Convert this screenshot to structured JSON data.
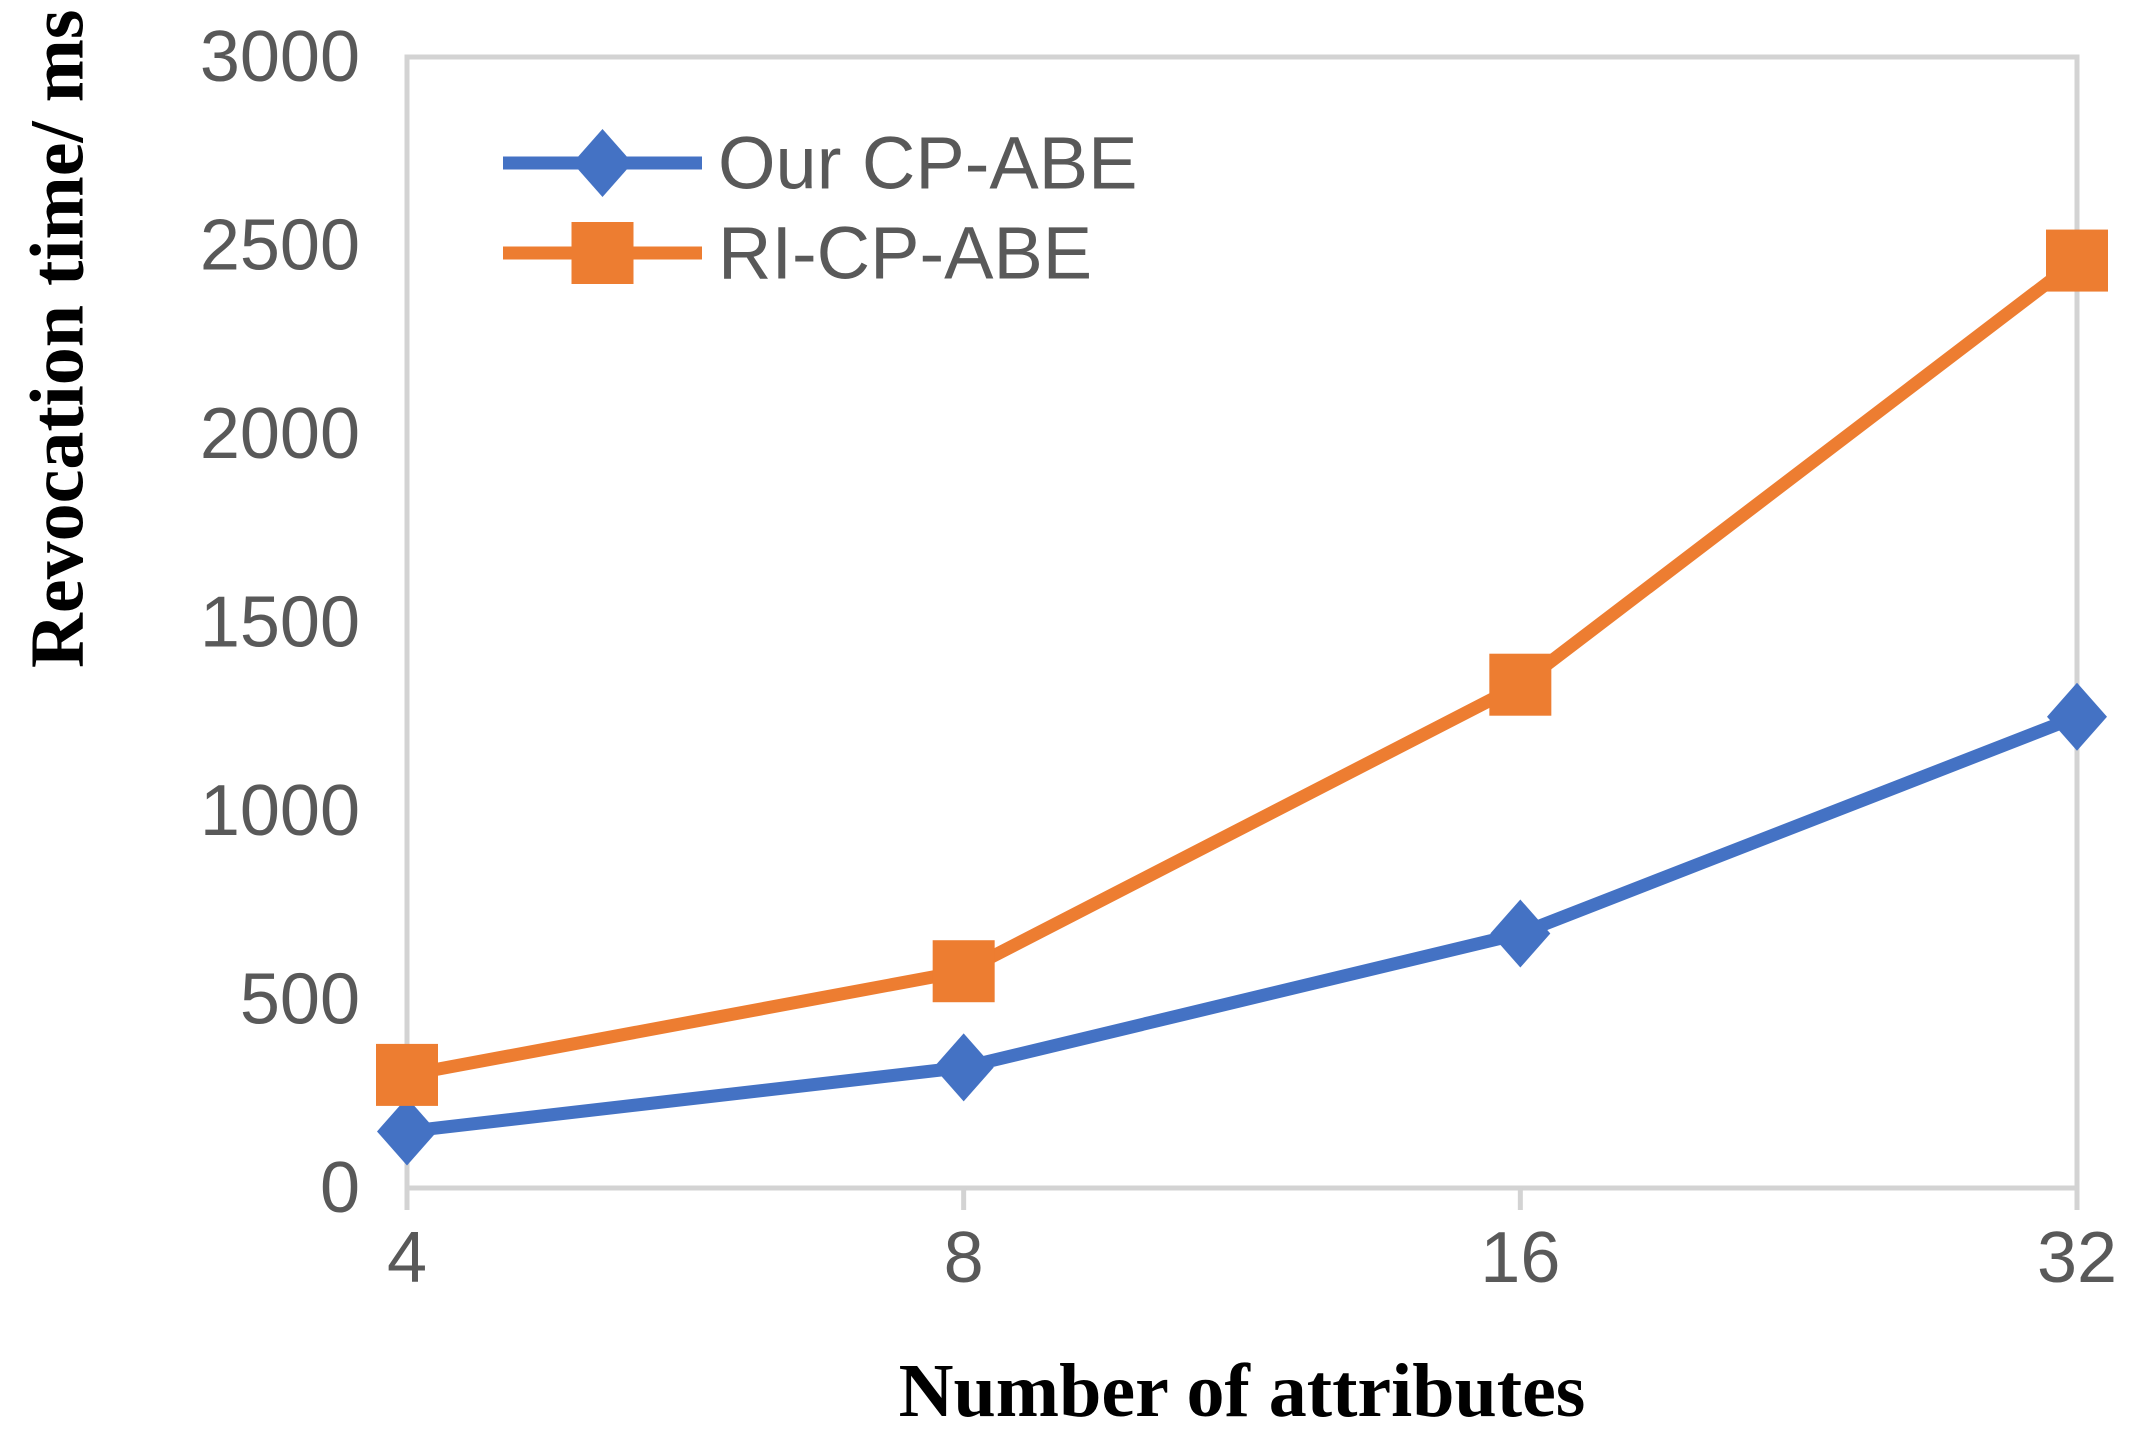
{
  "chart_data": {
    "type": "line",
    "title": "",
    "xlabel": "Number of attributes",
    "ylabel": "Revocation time/ ms",
    "categories": [
      "4",
      "8",
      "16",
      "32"
    ],
    "y_ticks": [
      0,
      500,
      1000,
      1500,
      2000,
      2500,
      3000
    ],
    "ylim": [
      0,
      3000
    ],
    "grid": false,
    "legend_position": "inside-top-left",
    "series": [
      {
        "name": "Our CP-ABE",
        "marker": "diamond",
        "color": "#4472C4",
        "values": [
          150,
          320,
          675,
          1250
        ]
      },
      {
        "name": "RI-CP-ABE",
        "marker": "square",
        "color": "#ED7D31",
        "values": [
          300,
          575,
          1335,
          2460
        ]
      }
    ],
    "colors": {
      "tick_text": "#595959",
      "legend_text": "#595959",
      "axis_line": "#D3D3D3",
      "axis_title_text": "#000000"
    }
  }
}
